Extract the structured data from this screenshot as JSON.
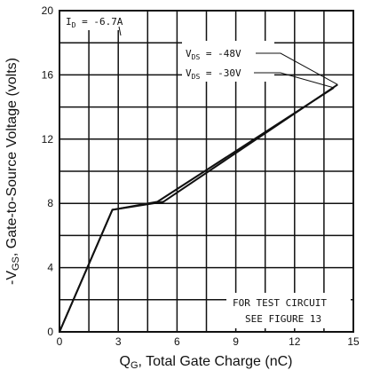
{
  "chart_data": {
    "type": "line",
    "title": "",
    "xlabel": {
      "main": "Q",
      "sub": "G",
      "rest": ", Total Gate Charge (nC)"
    },
    "ylabel": {
      "pre": "-V",
      "sub": "GS",
      "rest": ", Gate-to-Source Voltage (volts)"
    },
    "xlim": [
      0,
      15
    ],
    "ylim": [
      0,
      20
    ],
    "xticks": [
      0,
      3,
      6,
      9,
      12,
      15
    ],
    "yticks": [
      0,
      4,
      8,
      12,
      16,
      20
    ],
    "grid_minor_x": 1.5,
    "grid_minor_y": 2,
    "grid": true,
    "series": [
      {
        "name": "V_DS = -48V",
        "x": [
          0,
          2.7,
          5.3,
          14.2
        ],
        "y": [
          0,
          7.6,
          8.1,
          15.4
        ]
      },
      {
        "name": "V_DS = -30V",
        "x": [
          0,
          2.7,
          5.0,
          14.0
        ],
        "y": [
          0,
          7.6,
          8.1,
          15.2
        ]
      }
    ],
    "annotations": {
      "id_label": {
        "pre": "I",
        "sub": "D",
        "rest": " = -6.7A"
      },
      "vds48": {
        "pre": "V",
        "sub": "DS",
        "rest": " = -48V"
      },
      "vds30": {
        "pre": "V",
        "sub": "DS",
        "rest": " = -30V"
      },
      "test_line1": "FOR TEST CIRCUIT",
      "test_line2": "SEE FIGURE 13"
    }
  }
}
